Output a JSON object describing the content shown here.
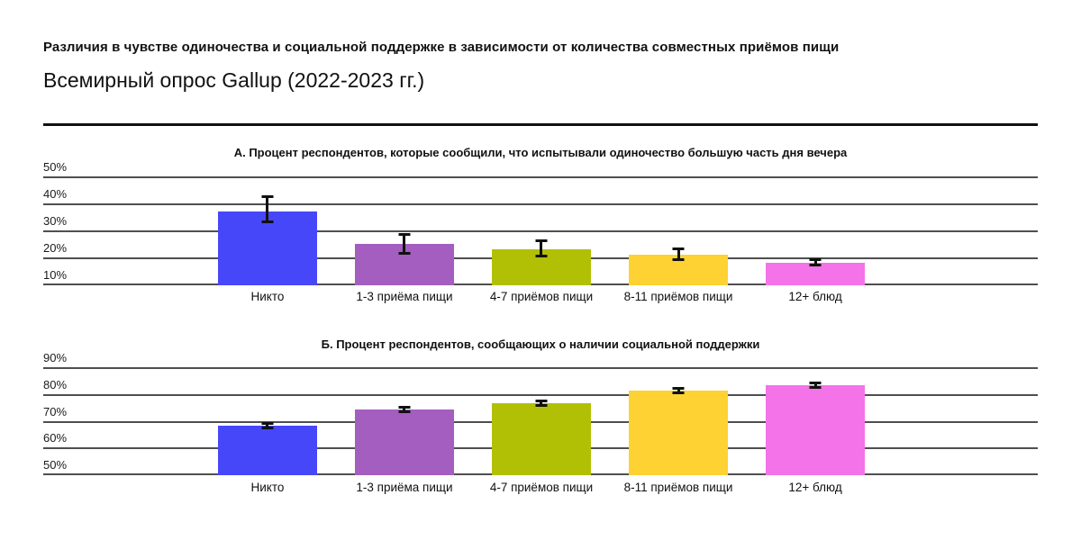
{
  "header": {
    "title": "Различия в чувстве одиночества и социальной поддержке в зависимости от количества совместных приёмов пищи",
    "subtitle": "Всемирный опрос Gallup (2022-2023 гг.)"
  },
  "colors": {
    "text": "#111111",
    "gridline": "#4f4f4f",
    "error_bar": "#111111",
    "bar_palette": [
      "#4747fa",
      "#a35ec0",
      "#b2c005",
      "#fdd232",
      "#f473e8"
    ]
  },
  "chart_data": [
    {
      "type": "bar",
      "panel": "А",
      "title": "А. Процент респондентов, которые сообщили, что испытывали одиночество большую часть дня вечера",
      "categories": [
        "Никто",
        "1-3 приёма пищи",
        "4-7 приёмов пищи",
        "8-11 приёмов пищи",
        "12+ блюд"
      ],
      "values": [
        37.5,
        25.5,
        23.5,
        21.5,
        18.5
      ],
      "ci_low": [
        33.0,
        21.5,
        20.5,
        19.0,
        17.0
      ],
      "ci_high": [
        43.5,
        29.5,
        27.0,
        24.0,
        20.0
      ],
      "ylim": [
        10,
        50
      ],
      "yticks": [
        10,
        20,
        30,
        40,
        50
      ],
      "ytick_suffix": "%",
      "grid": true,
      "legend": false,
      "bar_colors": [
        "#4747fa",
        "#a35ec0",
        "#b2c005",
        "#fdd232",
        "#f473e8"
      ]
    },
    {
      "type": "bar",
      "panel": "Б",
      "title": "Б. Процент респондентов, сообщающих о наличии социальной поддержки",
      "categories": [
        "Никто",
        "1-3 приёма пищи",
        "4-7 приёмов пищи",
        "8-11 приёмов пищи",
        "12+ блюд"
      ],
      "values": [
        68.5,
        74.5,
        77.0,
        81.5,
        83.5
      ],
      "ci_low": [
        67.3,
        73.3,
        75.7,
        80.3,
        82.3
      ],
      "ci_high": [
        70.0,
        76.0,
        78.3,
        83.0,
        84.8
      ],
      "ylim": [
        50,
        90
      ],
      "yticks": [
        50,
        60,
        70,
        80,
        90
      ],
      "ytick_suffix": "%",
      "grid": true,
      "legend": false,
      "bar_colors": [
        "#4747fa",
        "#a35ec0",
        "#b2c005",
        "#fdd232",
        "#f473e8"
      ]
    }
  ]
}
